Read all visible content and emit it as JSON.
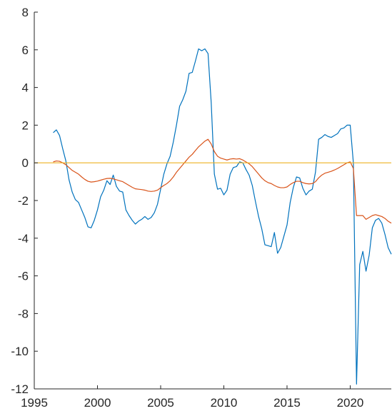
{
  "chart_data": {
    "type": "line",
    "xlim": [
      1995,
      2023.25
    ],
    "ylim": [
      -12,
      8
    ],
    "xticks": [
      1995,
      2000,
      2005,
      2010,
      2015,
      2020
    ],
    "yticks": [
      8,
      6,
      4,
      2,
      0,
      -2,
      -4,
      -6,
      -8,
      -10,
      -12
    ],
    "grid": false,
    "legend": "none",
    "title": "",
    "xlabel": "",
    "ylabel": "",
    "series": [
      {
        "color": "#0072BD",
        "points": [
          [
            1996.5,
            1.6
          ],
          [
            1996.75,
            1.75
          ],
          [
            1997.0,
            1.45
          ],
          [
            1997.25,
            0.75
          ],
          [
            1997.5,
            0.1
          ],
          [
            1997.75,
            -0.9
          ],
          [
            1998.0,
            -1.55
          ],
          [
            1998.25,
            -1.95
          ],
          [
            1998.5,
            -2.1
          ],
          [
            1998.75,
            -2.5
          ],
          [
            1999.0,
            -2.9
          ],
          [
            1999.25,
            -3.4
          ],
          [
            1999.5,
            -3.45
          ],
          [
            1999.75,
            -3.05
          ],
          [
            2000.0,
            -2.5
          ],
          [
            2000.25,
            -1.8
          ],
          [
            2000.5,
            -1.45
          ],
          [
            2000.75,
            -0.95
          ],
          [
            2001.0,
            -1.15
          ],
          [
            2001.25,
            -0.65
          ],
          [
            2001.5,
            -1.25
          ],
          [
            2001.75,
            -1.5
          ],
          [
            2002.0,
            -1.55
          ],
          [
            2002.25,
            -2.5
          ],
          [
            2002.5,
            -2.8
          ],
          [
            2002.75,
            -3.05
          ],
          [
            2003.0,
            -3.25
          ],
          [
            2003.25,
            -3.1
          ],
          [
            2003.5,
            -3.0
          ],
          [
            2003.75,
            -2.85
          ],
          [
            2004.0,
            -3.0
          ],
          [
            2004.25,
            -2.9
          ],
          [
            2004.5,
            -2.65
          ],
          [
            2004.75,
            -2.2
          ],
          [
            2005.0,
            -1.4
          ],
          [
            2005.25,
            -0.6
          ],
          [
            2005.5,
            -0.05
          ],
          [
            2005.75,
            0.35
          ],
          [
            2006.0,
            1.1
          ],
          [
            2006.25,
            2.0
          ],
          [
            2006.5,
            3.0
          ],
          [
            2006.75,
            3.35
          ],
          [
            2007.0,
            3.8
          ],
          [
            2007.25,
            4.75
          ],
          [
            2007.5,
            4.8
          ],
          [
            2007.75,
            5.4
          ],
          [
            2008.0,
            6.05
          ],
          [
            2008.25,
            5.95
          ],
          [
            2008.5,
            6.05
          ],
          [
            2008.75,
            5.8
          ],
          [
            2009.0,
            3.2
          ],
          [
            2009.25,
            -0.6
          ],
          [
            2009.5,
            -1.4
          ],
          [
            2009.75,
            -1.35
          ],
          [
            2010.0,
            -1.7
          ],
          [
            2010.25,
            -1.45
          ],
          [
            2010.5,
            -0.6
          ],
          [
            2010.75,
            -0.25
          ],
          [
            2011.0,
            -0.2
          ],
          [
            2011.25,
            0.05
          ],
          [
            2011.5,
            0.0
          ],
          [
            2011.75,
            -0.35
          ],
          [
            2012.0,
            -0.65
          ],
          [
            2012.25,
            -1.2
          ],
          [
            2012.5,
            -2.05
          ],
          [
            2012.75,
            -2.85
          ],
          [
            2013.0,
            -3.5
          ],
          [
            2013.25,
            -4.35
          ],
          [
            2013.5,
            -4.4
          ],
          [
            2013.75,
            -4.45
          ],
          [
            2014.0,
            -3.7
          ],
          [
            2014.25,
            -4.8
          ],
          [
            2014.5,
            -4.5
          ],
          [
            2014.75,
            -3.9
          ],
          [
            2015.0,
            -3.3
          ],
          [
            2015.25,
            -2.1
          ],
          [
            2015.5,
            -1.3
          ],
          [
            2015.75,
            -0.75
          ],
          [
            2016.0,
            -0.8
          ],
          [
            2016.25,
            -1.35
          ],
          [
            2016.5,
            -1.7
          ],
          [
            2016.75,
            -1.5
          ],
          [
            2017.0,
            -1.4
          ],
          [
            2017.25,
            -0.5
          ],
          [
            2017.5,
            1.25
          ],
          [
            2017.75,
            1.35
          ],
          [
            2018.0,
            1.5
          ],
          [
            2018.25,
            1.4
          ],
          [
            2018.5,
            1.35
          ],
          [
            2018.75,
            1.45
          ],
          [
            2019.0,
            1.55
          ],
          [
            2019.25,
            1.8
          ],
          [
            2019.5,
            1.85
          ],
          [
            2019.75,
            2.0
          ],
          [
            2020.0,
            2.0
          ],
          [
            2020.25,
            0.0
          ],
          [
            2020.5,
            -11.75
          ],
          [
            2020.75,
            -5.4
          ],
          [
            2021.0,
            -4.7
          ],
          [
            2021.25,
            -5.75
          ],
          [
            2021.5,
            -4.9
          ],
          [
            2021.75,
            -3.45
          ],
          [
            2022.0,
            -3.05
          ],
          [
            2022.25,
            -2.95
          ],
          [
            2022.5,
            -3.2
          ],
          [
            2022.75,
            -3.8
          ],
          [
            2023.0,
            -4.5
          ],
          [
            2023.25,
            -4.85
          ]
        ]
      },
      {
        "color": "#D95319",
        "points": [
          [
            1996.5,
            0.05
          ],
          [
            1996.75,
            0.1
          ],
          [
            1997.0,
            0.08
          ],
          [
            1997.25,
            0.0
          ],
          [
            1997.5,
            -0.1
          ],
          [
            1997.75,
            -0.25
          ],
          [
            1998.0,
            -0.4
          ],
          [
            1998.25,
            -0.5
          ],
          [
            1998.5,
            -0.6
          ],
          [
            1998.75,
            -0.75
          ],
          [
            1999.0,
            -0.88
          ],
          [
            1999.25,
            -0.98
          ],
          [
            1999.5,
            -1.02
          ],
          [
            1999.75,
            -1.0
          ],
          [
            2000.0,
            -0.97
          ],
          [
            2000.25,
            -0.92
          ],
          [
            2000.5,
            -0.87
          ],
          [
            2000.75,
            -0.83
          ],
          [
            2001.0,
            -0.82
          ],
          [
            2001.25,
            -0.85
          ],
          [
            2001.5,
            -0.9
          ],
          [
            2001.75,
            -0.95
          ],
          [
            2002.0,
            -1.0
          ],
          [
            2002.25,
            -1.1
          ],
          [
            2002.5,
            -1.2
          ],
          [
            2002.75,
            -1.3
          ],
          [
            2003.0,
            -1.38
          ],
          [
            2003.25,
            -1.4
          ],
          [
            2003.5,
            -1.42
          ],
          [
            2003.75,
            -1.45
          ],
          [
            2004.0,
            -1.5
          ],
          [
            2004.25,
            -1.52
          ],
          [
            2004.5,
            -1.5
          ],
          [
            2004.75,
            -1.45
          ],
          [
            2005.0,
            -1.32
          ],
          [
            2005.25,
            -1.2
          ],
          [
            2005.5,
            -1.1
          ],
          [
            2005.75,
            -0.95
          ],
          [
            2006.0,
            -0.75
          ],
          [
            2006.25,
            -0.5
          ],
          [
            2006.5,
            -0.3
          ],
          [
            2006.75,
            -0.1
          ],
          [
            2007.0,
            0.1
          ],
          [
            2007.25,
            0.3
          ],
          [
            2007.5,
            0.45
          ],
          [
            2007.75,
            0.65
          ],
          [
            2008.0,
            0.85
          ],
          [
            2008.25,
            1.0
          ],
          [
            2008.5,
            1.15
          ],
          [
            2008.75,
            1.25
          ],
          [
            2009.0,
            1.0
          ],
          [
            2009.25,
            0.6
          ],
          [
            2009.5,
            0.35
          ],
          [
            2009.75,
            0.25
          ],
          [
            2010.0,
            0.2
          ],
          [
            2010.25,
            0.15
          ],
          [
            2010.5,
            0.2
          ],
          [
            2010.75,
            0.22
          ],
          [
            2011.0,
            0.2
          ],
          [
            2011.25,
            0.22
          ],
          [
            2011.5,
            0.15
          ],
          [
            2011.75,
            0.05
          ],
          [
            2012.0,
            -0.05
          ],
          [
            2012.25,
            -0.2
          ],
          [
            2012.5,
            -0.4
          ],
          [
            2012.75,
            -0.6
          ],
          [
            2013.0,
            -0.8
          ],
          [
            2013.25,
            -0.95
          ],
          [
            2013.5,
            -1.05
          ],
          [
            2013.75,
            -1.1
          ],
          [
            2014.0,
            -1.2
          ],
          [
            2014.25,
            -1.28
          ],
          [
            2014.5,
            -1.32
          ],
          [
            2014.75,
            -1.32
          ],
          [
            2015.0,
            -1.28
          ],
          [
            2015.25,
            -1.15
          ],
          [
            2015.5,
            -1.05
          ],
          [
            2015.75,
            -0.98
          ],
          [
            2016.0,
            -0.98
          ],
          [
            2016.25,
            -1.05
          ],
          [
            2016.5,
            -1.1
          ],
          [
            2016.75,
            -1.12
          ],
          [
            2017.0,
            -1.1
          ],
          [
            2017.25,
            -1.0
          ],
          [
            2017.5,
            -0.8
          ],
          [
            2017.75,
            -0.65
          ],
          [
            2018.0,
            -0.55
          ],
          [
            2018.25,
            -0.5
          ],
          [
            2018.5,
            -0.45
          ],
          [
            2018.75,
            -0.38
          ],
          [
            2019.0,
            -0.3
          ],
          [
            2019.25,
            -0.2
          ],
          [
            2019.5,
            -0.1
          ],
          [
            2019.75,
            0.0
          ],
          [
            2020.0,
            0.05
          ],
          [
            2020.25,
            -0.3
          ],
          [
            2020.5,
            -2.8
          ],
          [
            2020.75,
            -2.8
          ],
          [
            2021.0,
            -2.8
          ],
          [
            2021.25,
            -3.0
          ],
          [
            2021.5,
            -2.9
          ],
          [
            2021.75,
            -2.8
          ],
          [
            2022.0,
            -2.75
          ],
          [
            2022.25,
            -2.8
          ],
          [
            2022.5,
            -2.85
          ],
          [
            2022.75,
            -2.95
          ],
          [
            2023.0,
            -3.1
          ],
          [
            2023.25,
            -3.2
          ]
        ]
      },
      {
        "color": "#EDB120",
        "points": [
          [
            1995,
            0
          ],
          [
            2023.25,
            0
          ]
        ]
      }
    ]
  }
}
